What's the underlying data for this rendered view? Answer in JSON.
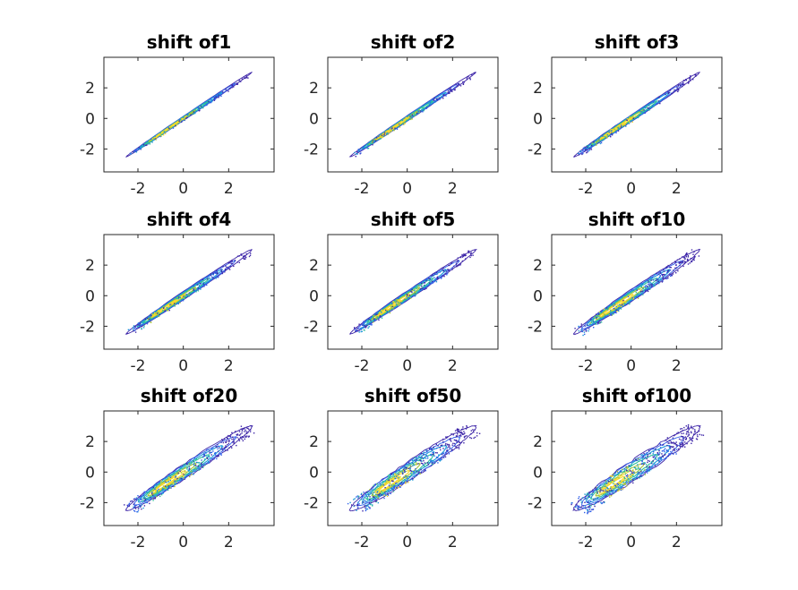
{
  "chart_data": [
    {
      "type": "contour",
      "title": "shift of1",
      "xlim": [
        -3.5,
        4
      ],
      "ylim": [
        -3.5,
        4
      ],
      "xticks": [
        "-2",
        "0",
        "2"
      ],
      "yticks": [
        "2",
        "0",
        "-2"
      ],
      "grid": false,
      "band_width": 0.1,
      "colormap": [
        "#3e26a8",
        "#2f5fea",
        "#1b98d8",
        "#2ebf9a",
        "#a7c538",
        "#f6d82c"
      ]
    },
    {
      "type": "contour",
      "title": "shift of2",
      "xlim": [
        -3.5,
        4
      ],
      "ylim": [
        -3.5,
        4
      ],
      "xticks": [
        "-2",
        "0",
        "2"
      ],
      "yticks": [
        "2",
        "0",
        "-2"
      ],
      "grid": false,
      "band_width": 0.13,
      "colormap": [
        "#3e26a8",
        "#2f5fea",
        "#1b98d8",
        "#2ebf9a",
        "#a7c538",
        "#f6d82c"
      ]
    },
    {
      "type": "contour",
      "title": "shift of3",
      "xlim": [
        -3.5,
        4
      ],
      "ylim": [
        -3.5,
        4
      ],
      "xticks": [
        "-2",
        "0",
        "2"
      ],
      "yticks": [
        "2",
        "0",
        "-2"
      ],
      "grid": false,
      "band_width": 0.16,
      "colormap": [
        "#3e26a8",
        "#2f5fea",
        "#1b98d8",
        "#2ebf9a",
        "#a7c538",
        "#f6d82c"
      ]
    },
    {
      "type": "contour",
      "title": "shift of4",
      "xlim": [
        -3.5,
        4
      ],
      "ylim": [
        -3.5,
        4
      ],
      "xticks": [
        "-2",
        "0",
        "2"
      ],
      "yticks": [
        "2",
        "0",
        "-2"
      ],
      "grid": false,
      "band_width": 0.19,
      "colormap": [
        "#3e26a8",
        "#2f5fea",
        "#1b98d8",
        "#2ebf9a",
        "#a7c538",
        "#f6d82c"
      ]
    },
    {
      "type": "contour",
      "title": "shift of5",
      "xlim": [
        -3.5,
        4
      ],
      "ylim": [
        -3.5,
        4
      ],
      "xticks": [
        "-2",
        "0",
        "2"
      ],
      "yticks": [
        "2",
        "0",
        "-2"
      ],
      "grid": false,
      "band_width": 0.22,
      "colormap": [
        "#3e26a8",
        "#2f5fea",
        "#1b98d8",
        "#2ebf9a",
        "#a7c538",
        "#f6d82c"
      ]
    },
    {
      "type": "contour",
      "title": "shift of10",
      "xlim": [
        -3.5,
        4
      ],
      "ylim": [
        -3.5,
        4
      ],
      "xticks": [
        "-2",
        "0",
        "2"
      ],
      "yticks": [
        "2",
        "0",
        "-2"
      ],
      "grid": false,
      "band_width": 0.28,
      "colormap": [
        "#3e26a8",
        "#2f5fea",
        "#1b98d8",
        "#2ebf9a",
        "#a7c538",
        "#f6d82c"
      ]
    },
    {
      "type": "contour",
      "title": "shift of20",
      "xlim": [
        -3.5,
        4
      ],
      "ylim": [
        -3.5,
        4
      ],
      "xticks": [
        "-2",
        "0",
        "2"
      ],
      "yticks": [
        "2",
        "0",
        "-2"
      ],
      "grid": false,
      "band_width": 0.36,
      "colormap": [
        "#3e26a8",
        "#2f5fea",
        "#1b98d8",
        "#2ebf9a",
        "#a7c538",
        "#f6d82c"
      ]
    },
    {
      "type": "contour",
      "title": "shift of50",
      "xlim": [
        -3.5,
        4
      ],
      "ylim": [
        -3.5,
        4
      ],
      "xticks": [
        "-2",
        "0",
        "2"
      ],
      "yticks": [
        "2",
        "0",
        "-2"
      ],
      "grid": false,
      "band_width": 0.46,
      "colormap": [
        "#3e26a8",
        "#2f5fea",
        "#1b98d8",
        "#2ebf9a",
        "#a7c538",
        "#f6d82c"
      ]
    },
    {
      "type": "contour",
      "title": "shift of100",
      "xlim": [
        -3.5,
        4
      ],
      "ylim": [
        -3.5,
        4
      ],
      "xticks": [
        "-2",
        "0",
        "2"
      ],
      "yticks": [
        "2",
        "0",
        "-2"
      ],
      "grid": false,
      "band_width": 0.5,
      "colormap": [
        "#3e26a8",
        "#2f5fea",
        "#1b98d8",
        "#2ebf9a",
        "#a7c538",
        "#f6d82c"
      ]
    }
  ]
}
